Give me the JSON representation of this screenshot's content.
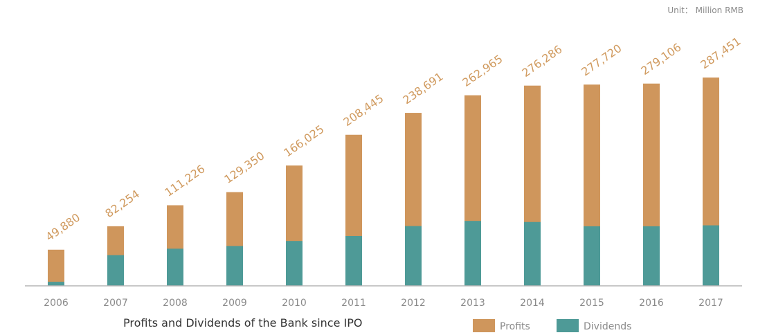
{
  "chart_data": {
    "type": "bar",
    "title": "Profits and Dividends of the Bank since IPO",
    "unit": "Unit： Million RMB",
    "categories": [
      "2006",
      "2007",
      "2008",
      "2009",
      "2010",
      "2011",
      "2012",
      "2013",
      "2014",
      "2015",
      "2016",
      "2017"
    ],
    "series": [
      {
        "name": "Profits",
        "values": [
          49880,
          82254,
          111226,
          129350,
          166025,
          208445,
          238691,
          262965,
          276286,
          277720,
          279106,
          287451
        ],
        "value_labels": [
          "49,880",
          "82,254",
          "111,226",
          "129,350",
          "166,025",
          "208,445",
          "238,691",
          "262,965",
          "276,286",
          "277,720",
          "279,106",
          "287,451"
        ]
      },
      {
        "name": "Dividends",
        "values": [
          5600,
          42400,
          51300,
          55000,
          61900,
          68800,
          82500,
          89600,
          88100,
          82200,
          82200,
          83500
        ]
      }
    ],
    "stacking": "overlay",
    "ylim": [
      0,
      300000
    ],
    "grid": false,
    "legend_position": "bottom-right",
    "colors": {
      "profits": "#cf965c",
      "dividends": "#4e9a97",
      "axis": "#b5b5b5"
    }
  }
}
